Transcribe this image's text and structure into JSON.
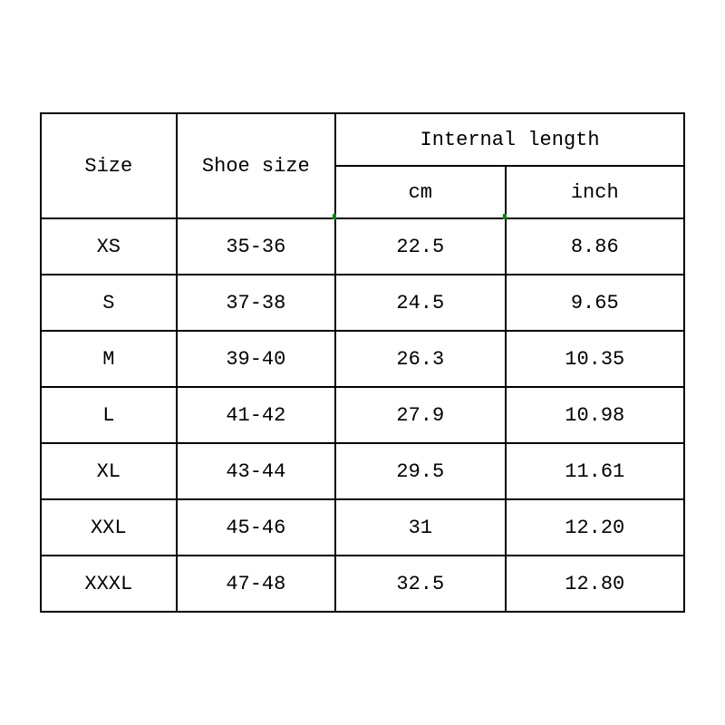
{
  "table": {
    "type": "table",
    "background_color": "#ffffff",
    "border_color": "#000000",
    "border_width": 2,
    "text_color": "#000000",
    "font_family": "Courier New",
    "font_size": 22,
    "accent_color": "#008800",
    "header": {
      "size_label": "Size",
      "shoe_size_label": "Shoe size",
      "internal_length_label": "Internal length",
      "cm_label": "cm",
      "inch_label": "inch"
    },
    "columns": [
      {
        "key": "size",
        "width": 150,
        "align": "center"
      },
      {
        "key": "shoe_size",
        "width": 176,
        "align": "center"
      },
      {
        "key": "cm",
        "width": 188,
        "align": "center"
      },
      {
        "key": "inch",
        "width": 198,
        "align": "center"
      }
    ],
    "rows": [
      {
        "size": "XS",
        "shoe_size": "35-36",
        "cm": "22.5",
        "inch": "8.86"
      },
      {
        "size": "S",
        "shoe_size": "37-38",
        "cm": "24.5",
        "inch": "9.65"
      },
      {
        "size": "M",
        "shoe_size": "39-40",
        "cm": "26.3",
        "inch": "10.35"
      },
      {
        "size": "L",
        "shoe_size": "41-42",
        "cm": "27.9",
        "inch": "10.98"
      },
      {
        "size": "XL",
        "shoe_size": "43-44",
        "cm": "29.5",
        "inch": "11.61"
      },
      {
        "size": "XXL",
        "shoe_size": "45-46",
        "cm": "31",
        "inch": "12.20"
      },
      {
        "size": "XXXL",
        "shoe_size": "47-48",
        "cm": "32.5",
        "inch": "12.80"
      }
    ],
    "header_row_height": 58,
    "data_row_height": 62
  }
}
